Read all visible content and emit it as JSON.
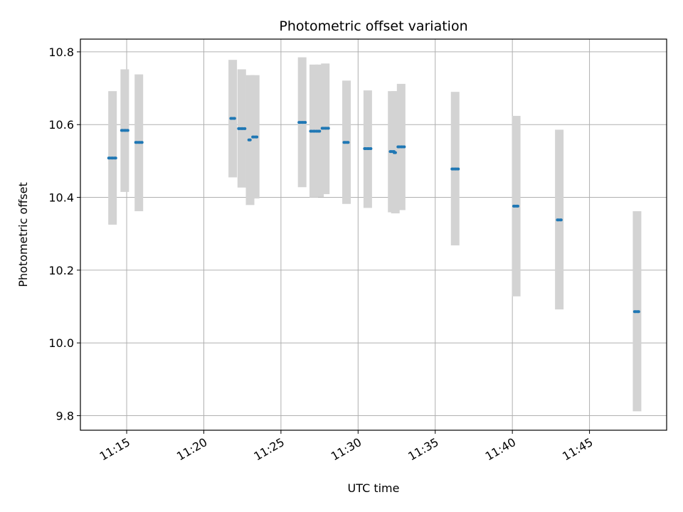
{
  "chart_data": {
    "type": "scatter",
    "title": "Photometric offset variation",
    "xlabel": "UTC time",
    "ylabel": "Photometric offset",
    "x_type": "time",
    "xlim": [
      "11:12",
      "11:50"
    ],
    "ylim": [
      9.76,
      10.835
    ],
    "x_ticks": [
      "11:15",
      "11:20",
      "11:25",
      "11:30",
      "11:35",
      "11:40",
      "11:45"
    ],
    "y_ticks": [
      9.8,
      10.0,
      10.2,
      10.4,
      10.6,
      10.8
    ],
    "y_tick_labels": [
      "9.8",
      "10.0",
      "10.2",
      "10.4",
      "10.6",
      "10.8"
    ],
    "grid": true,
    "colors": {
      "points": "#1f77b4",
      "error_bars": "#d3d3d3",
      "grid": "#b0b0b0",
      "axes": "#000000"
    },
    "points": [
      {
        "t_start": "11:13:50",
        "t_end": "11:14:20",
        "y": 10.508,
        "lo": 10.325,
        "hi": 10.692
      },
      {
        "t_start": "11:14:40",
        "t_end": "11:15:05",
        "y": 10.584,
        "lo": 10.415,
        "hi": 10.752
      },
      {
        "t_start": "11:15:35",
        "t_end": "11:16:00",
        "y": 10.551,
        "lo": 10.362,
        "hi": 10.738
      },
      {
        "t_start": "11:21:45",
        "t_end": "11:22:00",
        "y": 10.617,
        "lo": 10.455,
        "hi": 10.778
      },
      {
        "t_start": "11:22:15",
        "t_end": "11:22:40",
        "y": 10.589,
        "lo": 10.427,
        "hi": 10.752
      },
      {
        "t_start": "11:22:55",
        "t_end": "11:23:05",
        "y": 10.558,
        "lo": 10.379,
        "hi": 10.736
      },
      {
        "t_start": "11:23:10",
        "t_end": "11:23:30",
        "y": 10.566,
        "lo": 10.397,
        "hi": 10.736
      },
      {
        "t_start": "11:26:10",
        "t_end": "11:26:35",
        "y": 10.606,
        "lo": 10.428,
        "hi": 10.785
      },
      {
        "t_start": "11:26:55",
        "t_end": "11:27:20",
        "y": 10.582,
        "lo": 10.4,
        "hi": 10.765
      },
      {
        "t_start": "11:27:25",
        "t_end": "11:27:35",
        "y": 10.582,
        "lo": 10.401,
        "hi": 10.765
      },
      {
        "t_start": "11:27:40",
        "t_end": "11:28:05",
        "y": 10.59,
        "lo": 10.409,
        "hi": 10.768
      },
      {
        "t_start": "11:29:05",
        "t_end": "11:29:25",
        "y": 10.551,
        "lo": 10.382,
        "hi": 10.721
      },
      {
        "t_start": "11:30:25",
        "t_end": "11:30:50",
        "y": 10.534,
        "lo": 10.371,
        "hi": 10.694
      },
      {
        "t_start": "11:32:05",
        "t_end": "11:32:20",
        "y": 10.526,
        "lo": 10.359,
        "hi": 10.692
      },
      {
        "t_start": "11:32:20",
        "t_end": "11:32:30",
        "y": 10.523,
        "lo": 10.356,
        "hi": 10.692
      },
      {
        "t_start": "11:32:35",
        "t_end": "11:33:00",
        "y": 10.539,
        "lo": 10.365,
        "hi": 10.712
      },
      {
        "t_start": "11:36:05",
        "t_end": "11:36:30",
        "y": 10.478,
        "lo": 10.268,
        "hi": 10.69
      },
      {
        "t_start": "11:40:05",
        "t_end": "11:40:25",
        "y": 10.376,
        "lo": 10.128,
        "hi": 10.624
      },
      {
        "t_start": "11:42:55",
        "t_end": "11:43:10",
        "y": 10.338,
        "lo": 10.092,
        "hi": 10.586
      },
      {
        "t_start": "11:47:55",
        "t_end": "11:48:15",
        "y": 10.086,
        "lo": 9.812,
        "hi": 10.362
      }
    ]
  }
}
